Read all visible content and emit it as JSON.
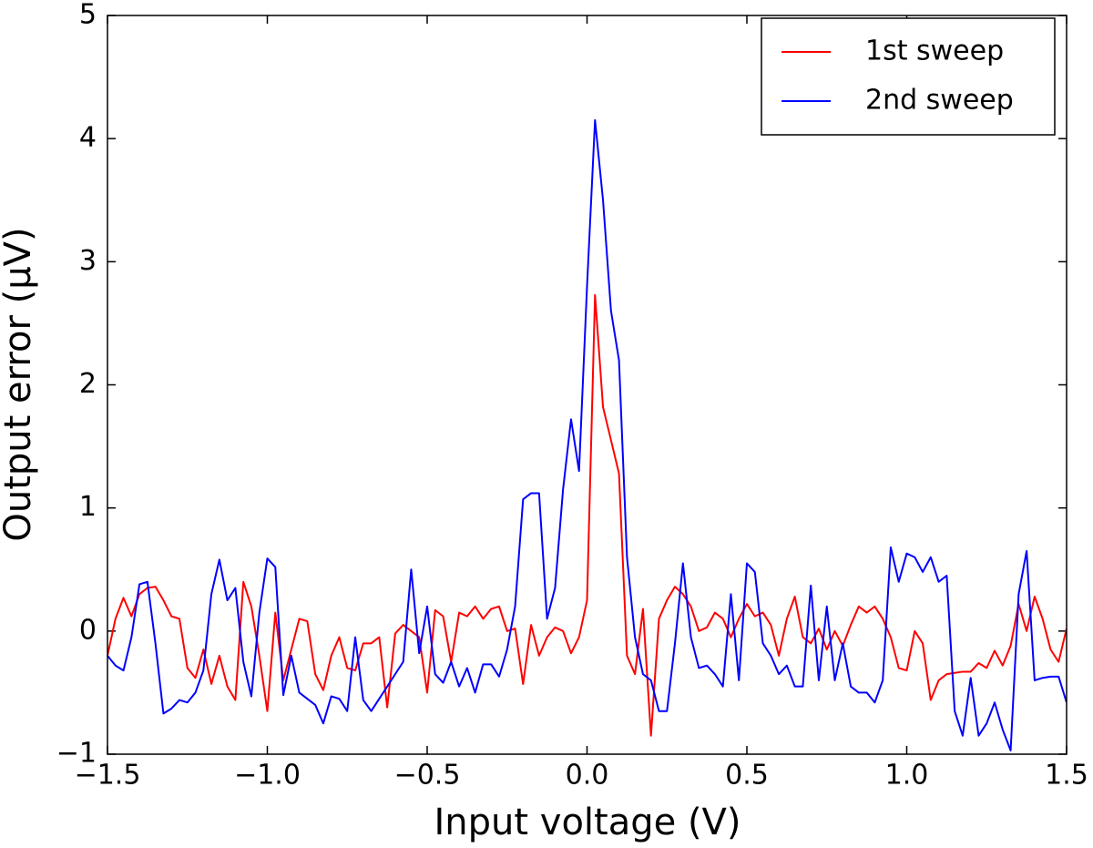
{
  "chart_data": {
    "type": "line",
    "xlabel": "Input voltage (V)",
    "ylabel": "Output error (μV)",
    "x": [
      -1.5,
      -1.475,
      -1.45,
      -1.425,
      -1.4,
      -1.375,
      -1.35,
      -1.325,
      -1.3,
      -1.275,
      -1.25,
      -1.225,
      -1.2,
      -1.175,
      -1.15,
      -1.125,
      -1.1,
      -1.075,
      -1.05,
      -1.025,
      -1.0,
      -0.975,
      -0.95,
      -0.925,
      -0.9,
      -0.875,
      -0.85,
      -0.825,
      -0.8,
      -0.775,
      -0.75,
      -0.725,
      -0.7,
      -0.675,
      -0.65,
      -0.625,
      -0.6,
      -0.575,
      -0.55,
      -0.525,
      -0.5,
      -0.475,
      -0.45,
      -0.425,
      -0.4,
      -0.375,
      -0.35,
      -0.325,
      -0.3,
      -0.275,
      -0.25,
      -0.225,
      -0.2,
      -0.175,
      -0.15,
      -0.125,
      -0.1,
      -0.075,
      -0.05,
      -0.025,
      0.0,
      0.025,
      0.05,
      0.075,
      0.1,
      0.125,
      0.15,
      0.175,
      0.2,
      0.225,
      0.25,
      0.275,
      0.3,
      0.325,
      0.35,
      0.375,
      0.4,
      0.425,
      0.45,
      0.475,
      0.5,
      0.525,
      0.55,
      0.575,
      0.6,
      0.625,
      0.65,
      0.675,
      0.7,
      0.725,
      0.75,
      0.775,
      0.8,
      0.825,
      0.85,
      0.875,
      0.9,
      0.925,
      0.95,
      0.975,
      1.0,
      1.025,
      1.05,
      1.075,
      1.1,
      1.125,
      1.15,
      1.175,
      1.2,
      1.225,
      1.25,
      1.275,
      1.3,
      1.325,
      1.35,
      1.375,
      1.4,
      1.425,
      1.45,
      1.475,
      1.5
    ],
    "series": [
      {
        "name": "1st sweep",
        "color": "#ff0000",
        "values": [
          -0.2,
          0.1,
          0.27,
          0.12,
          0.3,
          0.35,
          0.36,
          0.25,
          0.12,
          0.1,
          -0.3,
          -0.38,
          -0.15,
          -0.43,
          -0.2,
          -0.45,
          -0.56,
          0.4,
          0.2,
          -0.2,
          -0.65,
          0.15,
          -0.4,
          -0.15,
          0.1,
          0.08,
          -0.35,
          -0.48,
          -0.2,
          -0.05,
          -0.3,
          -0.32,
          -0.1,
          -0.1,
          -0.05,
          -0.62,
          -0.02,
          0.05,
          0.0,
          -0.05,
          -0.5,
          0.17,
          0.12,
          -0.25,
          0.15,
          0.12,
          0.2,
          0.1,
          0.18,
          0.2,
          0.0,
          0.02,
          -0.43,
          0.05,
          -0.2,
          -0.05,
          0.03,
          0.0,
          -0.18,
          -0.05,
          0.25,
          2.73,
          1.82,
          1.55,
          1.28,
          -0.2,
          -0.35,
          0.18,
          -0.85,
          0.1,
          0.25,
          0.36,
          0.3,
          0.2,
          0.0,
          0.03,
          0.15,
          0.1,
          -0.05,
          0.1,
          0.22,
          0.12,
          0.15,
          0.05,
          -0.2,
          0.1,
          0.28,
          -0.05,
          -0.1,
          0.02,
          -0.15,
          0.0,
          -0.12,
          0.05,
          0.2,
          0.15,
          0.2,
          0.1,
          -0.05,
          -0.3,
          -0.32,
          0.0,
          -0.1,
          -0.56,
          -0.4,
          -0.35,
          -0.34,
          -0.33,
          -0.33,
          -0.26,
          -0.3,
          -0.16,
          -0.28,
          -0.12,
          0.22,
          0.0,
          0.28,
          0.1,
          -0.15,
          -0.25,
          0.02
        ]
      },
      {
        "name": "2nd sweep",
        "color": "#0000ff",
        "values": [
          -0.2,
          -0.28,
          -0.32,
          -0.05,
          0.38,
          0.4,
          -0.1,
          -0.67,
          -0.63,
          -0.56,
          -0.58,
          -0.5,
          -0.32,
          0.3,
          0.58,
          0.25,
          0.35,
          -0.25,
          -0.53,
          0.15,
          0.59,
          0.52,
          -0.52,
          -0.2,
          -0.5,
          -0.55,
          -0.6,
          -0.75,
          -0.53,
          -0.55,
          -0.65,
          -0.05,
          -0.56,
          -0.65,
          -0.55,
          -0.45,
          -0.35,
          -0.25,
          0.5,
          -0.18,
          0.2,
          -0.35,
          -0.42,
          -0.25,
          -0.45,
          -0.3,
          -0.5,
          -0.27,
          -0.27,
          -0.37,
          -0.15,
          0.2,
          1.07,
          1.12,
          1.12,
          0.1,
          0.35,
          1.15,
          1.72,
          1.3,
          2.8,
          4.15,
          3.5,
          2.6,
          2.2,
          0.6,
          -0.05,
          -0.35,
          -0.4,
          -0.65,
          -0.65,
          -0.1,
          0.55,
          -0.05,
          -0.3,
          -0.28,
          -0.35,
          -0.45,
          0.3,
          -0.4,
          0.55,
          0.48,
          -0.1,
          -0.2,
          -0.35,
          -0.28,
          -0.45,
          -0.45,
          0.37,
          -0.4,
          0.2,
          -0.4,
          -0.1,
          -0.45,
          -0.5,
          -0.5,
          -0.58,
          -0.4,
          0.68,
          0.4,
          0.63,
          0.6,
          0.48,
          0.6,
          0.4,
          0.45,
          -0.65,
          -0.85,
          -0.38,
          -0.85,
          -0.75,
          -0.58,
          -0.8,
          -0.97,
          0.3,
          0.65,
          -0.4,
          -0.38,
          -0.37,
          -0.37,
          -0.58
        ]
      }
    ],
    "xlim": [
      -1.5,
      1.5
    ],
    "xticks": [
      {
        "value": -1.5,
        "label": "−1.5"
      },
      {
        "value": -1.0,
        "label": "−1.0"
      },
      {
        "value": -0.5,
        "label": "−0.5"
      },
      {
        "value": 0.0,
        "label": "0.0"
      },
      {
        "value": 0.5,
        "label": "0.5"
      },
      {
        "value": 1.0,
        "label": "1.0"
      },
      {
        "value": 1.5,
        "label": "1.5"
      }
    ],
    "ylim": [
      -1,
      5
    ],
    "yticks": [
      {
        "value": -1,
        "label": "−1"
      },
      0,
      1,
      2,
      3,
      4,
      5
    ],
    "grid": false,
    "legend": "upper right"
  }
}
